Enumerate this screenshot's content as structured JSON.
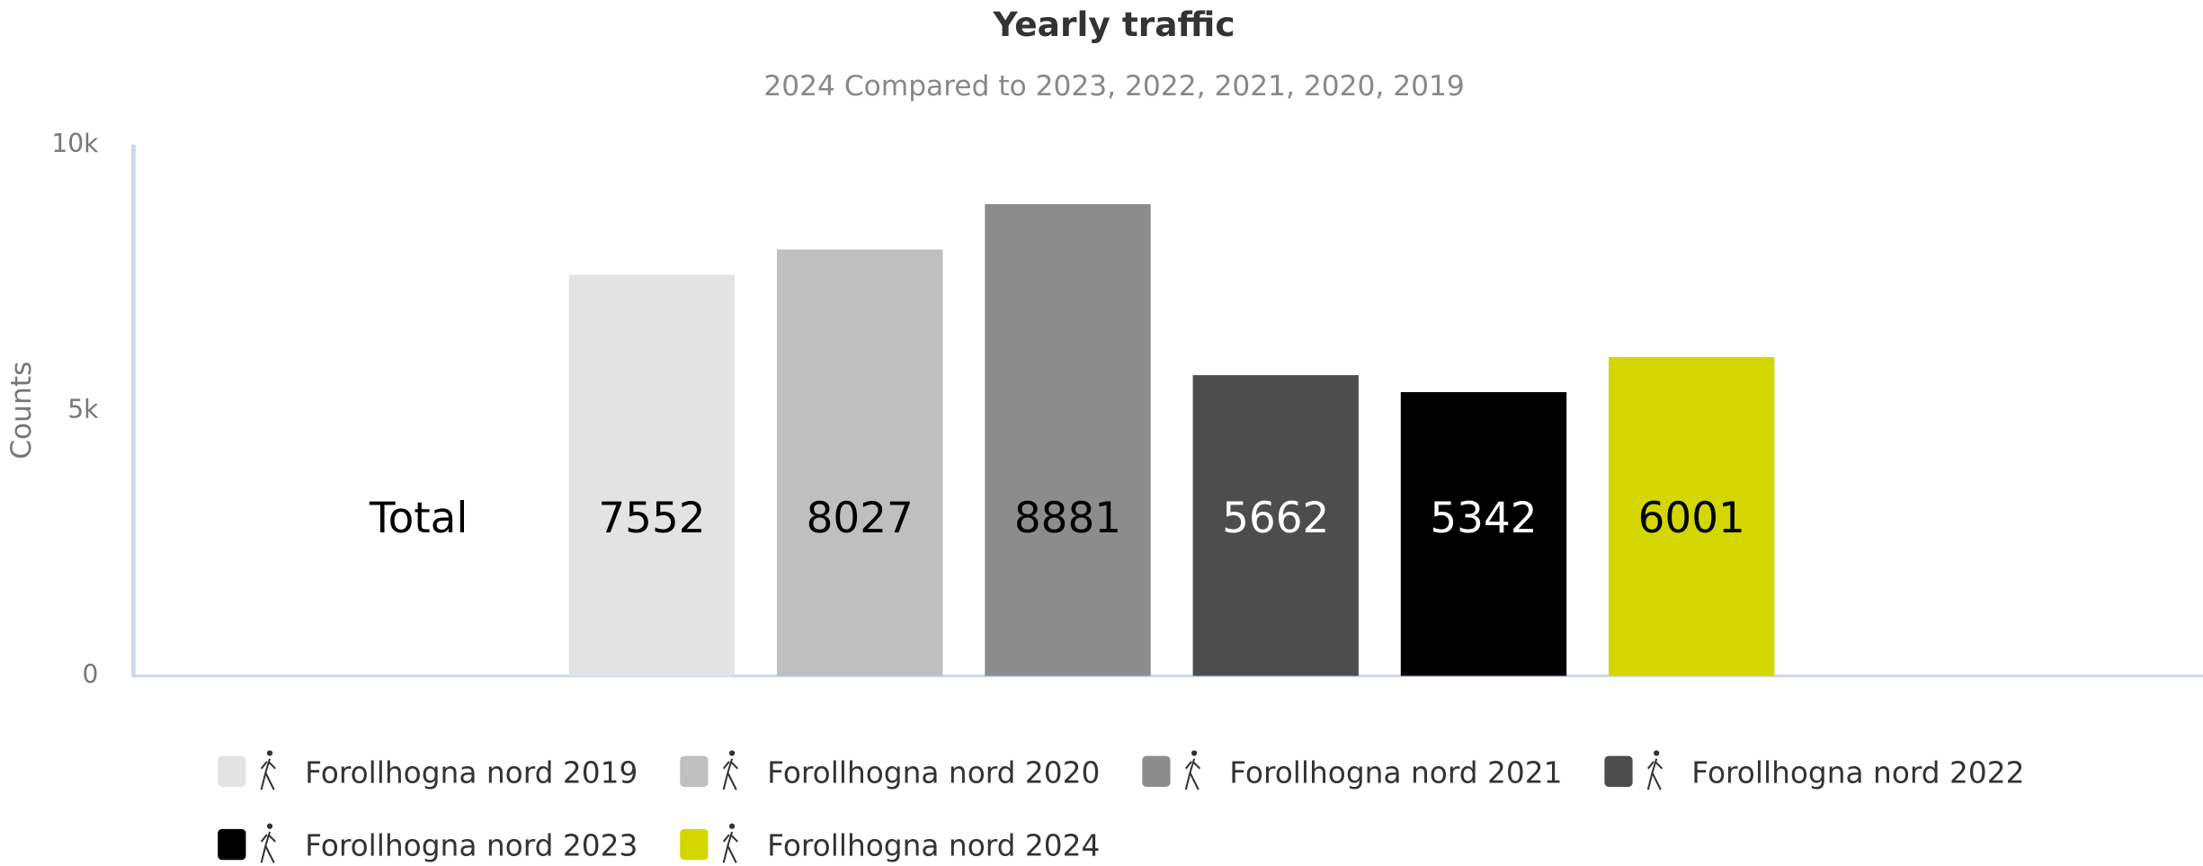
{
  "chart_data": {
    "type": "bar",
    "title": "Yearly traffic",
    "subtitle": "2024 Compared to 2023, 2022, 2021, 2020, 2019",
    "y_label": "Counts",
    "categories": [
      "Total"
    ],
    "series": [
      {
        "name": "Forollhogna nord 2019",
        "color": "#e3e3e3",
        "values": [
          7552
        ]
      },
      {
        "name": "Forollhogna nord 2020",
        "color": "#bfbfbf",
        "values": [
          8027
        ]
      },
      {
        "name": "Forollhogna nord 2021",
        "color": "#8c8c8c",
        "values": [
          8881
        ]
      },
      {
        "name": "Forollhogna nord 2022",
        "color": "#4d4d4d",
        "values": [
          5662
        ]
      },
      {
        "name": "Forollhogna nord 2023",
        "color": "#000000",
        "values": [
          5342
        ]
      },
      {
        "name": "Forollhogna nord 2024",
        "color": "#d4d600",
        "values": [
          6001
        ]
      }
    ],
    "ylim": [
      0,
      10000
    ],
    "yticks": [
      0,
      {
        "value": 5000,
        "label": "5k"
      },
      {
        "value": 10000,
        "label": "10k"
      }
    ],
    "legend": "bottom"
  }
}
